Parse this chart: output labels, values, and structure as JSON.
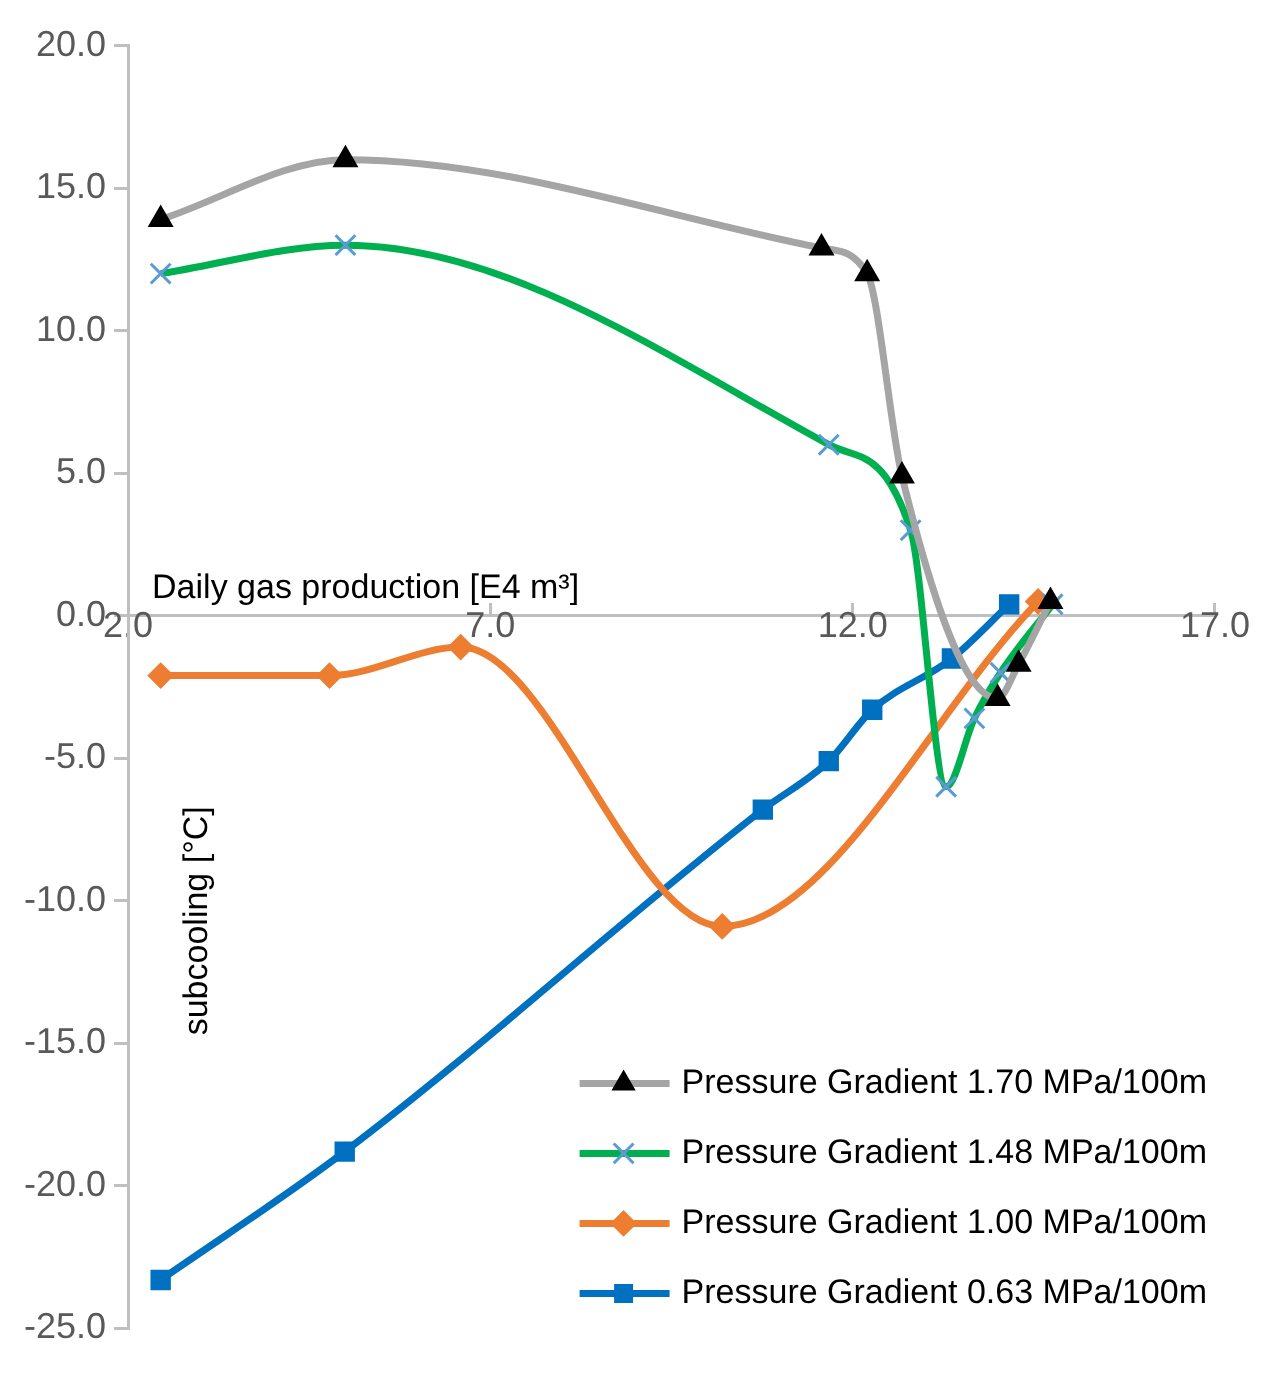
{
  "chart_data": {
    "type": "line",
    "xlabel": "Daily gas production [E4 m³]",
    "ylabel": "subcooling [°C]",
    "xlim": [
      2,
      17
    ],
    "xticks": [
      {
        "value": 2,
        "label": "2.0"
      },
      {
        "value": 7,
        "label": "7.0"
      },
      {
        "value": 12,
        "label": "12.0"
      },
      {
        "value": 17,
        "label": "17.0"
      }
    ],
    "ylim": [
      -25,
      20
    ],
    "yticks": [
      {
        "value": -25,
        "label": "-25.0"
      },
      {
        "value": -20,
        "label": "-20.0"
      },
      {
        "value": -15,
        "label": "-15.0"
      },
      {
        "value": -10,
        "label": "-10.0"
      },
      {
        "value": -5,
        "label": "-5.0"
      },
      {
        "value": 0,
        "label": "0.0"
      },
      {
        "value": 5,
        "label": "5.0"
      },
      {
        "value": 10,
        "label": "10.0"
      },
      {
        "value": 15,
        "label": "15.0"
      },
      {
        "value": 20,
        "label": "20.0"
      }
    ],
    "grid": false,
    "legend": "bottom right",
    "series": [
      {
        "name": "Pressure Gradient 1.70 MPa/100m",
        "color": "#a5a5a5",
        "marker": "triangle",
        "x": [
          2.45,
          5.0,
          11.57,
          12.2,
          12.68,
          14.0,
          14.29,
          14.73
        ],
        "values": [
          13.9,
          16.0,
          12.9,
          12.0,
          4.9,
          -2.9,
          -1.7,
          0.5
        ]
      },
      {
        "name": "Pressure Gradient 1.48 MPa/100m",
        "color": "#00b050",
        "marker": "cross",
        "x": [
          2.45,
          5.0,
          11.67,
          12.8,
          13.29,
          13.68,
          14.04,
          14.76
        ],
        "values": [
          12.0,
          13.0,
          6.0,
          3.0,
          -6.0,
          -3.6,
          -2.0,
          0.4
        ]
      },
      {
        "name": "Pressure Gradient 1.00 MPa/100m",
        "color": "#ed7d31",
        "marker": "diamond",
        "x": [
          2.45,
          4.78,
          6.59,
          10.2,
          14.56
        ],
        "values": [
          -2.1,
          -2.1,
          -1.1,
          -10.9,
          0.5
        ]
      },
      {
        "name": "Pressure Gradient 0.63 MPa/100m",
        "color": "#0070c0",
        "marker": "square",
        "x": [
          2.45,
          4.99,
          10.76,
          11.67,
          12.27,
          13.37,
          14.16
        ],
        "values": [
          -23.3,
          -18.8,
          -6.8,
          -5.1,
          -3.3,
          -1.5,
          0.4
        ]
      }
    ]
  }
}
